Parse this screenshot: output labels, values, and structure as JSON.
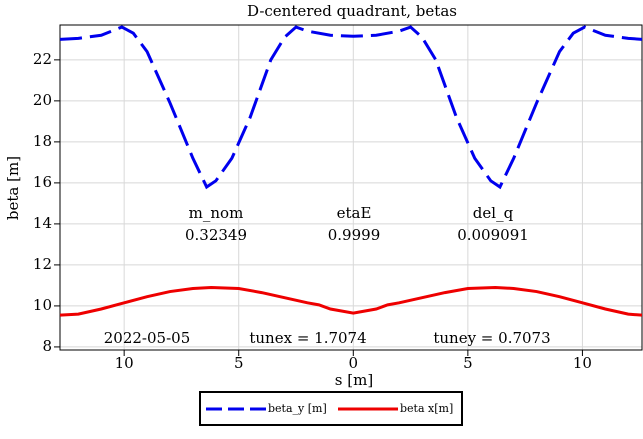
{
  "chart_data": {
    "type": "line",
    "title": "D-centered quadrant, betas",
    "xlabel": "s [m]",
    "ylabel": "beta [m]",
    "xlim": [
      -12.8,
      12.6
    ],
    "ylim": [
      7.85,
      23.7
    ],
    "xticks": [
      {
        "value": -10,
        "label": "10"
      },
      {
        "value": -5,
        "label": "5"
      },
      0,
      5,
      10
    ],
    "yticks": [
      8,
      10,
      12,
      14,
      16,
      18,
      20,
      22
    ],
    "grid": true,
    "legend": "bottom",
    "series": [
      {
        "name": "beta_y [m]",
        "color": "#0000ee",
        "dashed": true,
        "x": [
          -12.8,
          -12,
          -11,
          -10.1,
          -9.6,
          -9,
          -8,
          -7,
          -6.4,
          -6,
          -5.3,
          -4.5,
          -3.6,
          -3,
          -2.5,
          -2,
          -1,
          0,
          1,
          2,
          2.5,
          3,
          3.6,
          4.5,
          5.3,
          6,
          6.4,
          7,
          8,
          9,
          9.6,
          10.1,
          11,
          12,
          12.6
        ],
        "values": [
          23.0,
          23.05,
          23.2,
          23.6,
          23.3,
          22.4,
          19.9,
          17.2,
          15.8,
          16.1,
          17.2,
          19.2,
          22.0,
          23.1,
          23.6,
          23.4,
          23.2,
          23.15,
          23.2,
          23.4,
          23.6,
          23.1,
          22.0,
          19.2,
          17.2,
          16.1,
          15.8,
          17.2,
          19.9,
          22.4,
          23.3,
          23.6,
          23.2,
          23.05,
          23.0
        ]
      },
      {
        "name": "beta x[m]",
        "color": "#ee0000",
        "dashed": false,
        "x": [
          -12.8,
          -12,
          -11,
          -10,
          -9,
          -8,
          -7,
          -6.2,
          -5,
          -4,
          -3,
          -2,
          -1.5,
          -1,
          0,
          1,
          1.5,
          2,
          3,
          4,
          5,
          6.2,
          7,
          8,
          9,
          10,
          11,
          12,
          12.6
        ],
        "values": [
          9.55,
          9.6,
          9.85,
          10.15,
          10.45,
          10.7,
          10.85,
          10.9,
          10.85,
          10.65,
          10.4,
          10.15,
          10.05,
          9.85,
          9.65,
          9.85,
          10.05,
          10.15,
          10.4,
          10.65,
          10.85,
          10.9,
          10.85,
          10.7,
          10.45,
          10.15,
          9.85,
          9.6,
          9.55
        ]
      }
    ],
    "annotations": [
      "m_nom",
      "0.32349",
      "etaE",
      "0.9999",
      "del_q",
      "0.009091",
      "2022-05-05",
      "tunex = 1.7074",
      "tuney = 0.7073"
    ]
  }
}
